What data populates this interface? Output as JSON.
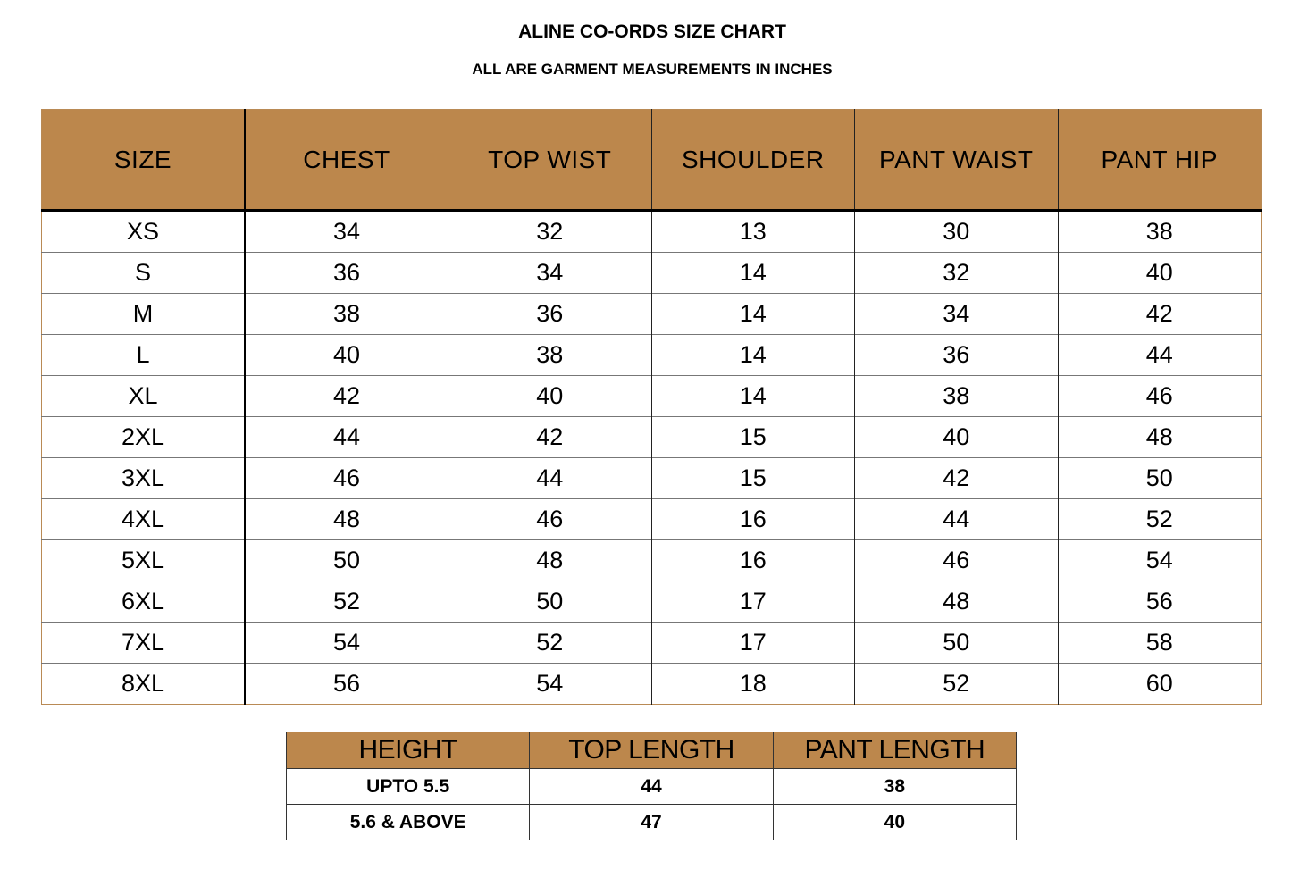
{
  "title": "ALINE CO-ORDS SIZE CHART",
  "subtitle": "ALL ARE GARMENT MEASUREMENTS IN INCHES",
  "header_color": "#BC874C",
  "size_table": {
    "headers": [
      "SIZE",
      "CHEST",
      "TOP WIST",
      "SHOULDER",
      "PANT WAIST",
      "PANT HIP"
    ],
    "rows": [
      [
        "XS",
        "34",
        "32",
        "13",
        "30",
        "38"
      ],
      [
        "S",
        "36",
        "34",
        "14",
        "32",
        "40"
      ],
      [
        "M",
        "38",
        "36",
        "14",
        "34",
        "42"
      ],
      [
        "L",
        "40",
        "38",
        "14",
        "36",
        "44"
      ],
      [
        "XL",
        "42",
        "40",
        "14",
        "38",
        "46"
      ],
      [
        "2XL",
        "44",
        "42",
        "15",
        "40",
        "48"
      ],
      [
        "3XL",
        "46",
        "44",
        "15",
        "42",
        "50"
      ],
      [
        "4XL",
        "48",
        "46",
        "16",
        "44",
        "52"
      ],
      [
        "5XL",
        "50",
        "48",
        "16",
        "46",
        "54"
      ],
      [
        "6XL",
        "52",
        "50",
        "17",
        "48",
        "56"
      ],
      [
        "7XL",
        "54",
        "52",
        "17",
        "50",
        "58"
      ],
      [
        "8XL",
        "56",
        "54",
        "18",
        "52",
        "60"
      ]
    ]
  },
  "length_table": {
    "headers": [
      "HEIGHT",
      "TOP LENGTH",
      "PANT LENGTH"
    ],
    "rows": [
      [
        "UPTO 5.5",
        "44",
        "38"
      ],
      [
        "5.6 & ABOVE",
        "47",
        "40"
      ]
    ]
  }
}
